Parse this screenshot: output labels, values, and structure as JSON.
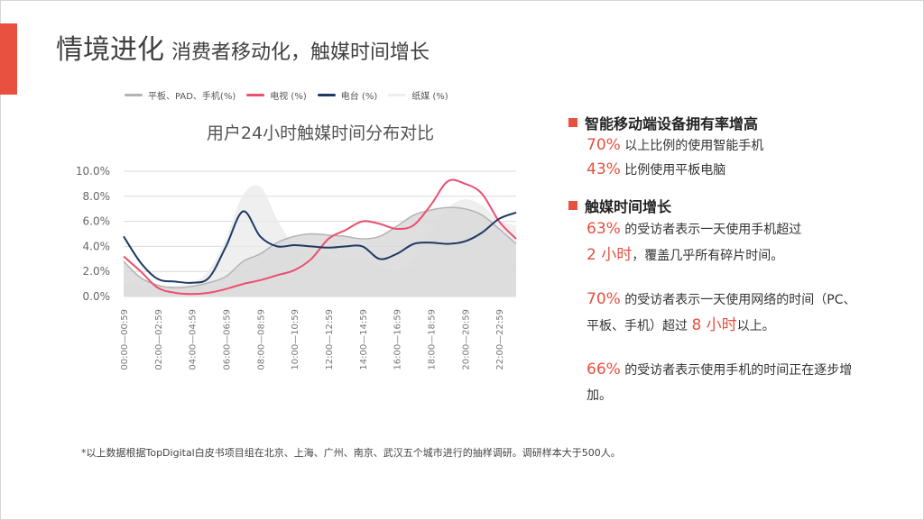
{
  "slide": {
    "title_main": "情境进化",
    "title_sub": "消费者移动化，触媒时间增长",
    "footnote": "*以上数据根据TopDigital白皮书项目组在北京、上海、广州、南京、武汉五个城市进行的抽样调研。调研样本大于500人。",
    "accent_color": "#e8503f"
  },
  "right_panel": {
    "section1": {
      "heading": "智能移动端设备拥有率增高",
      "line1_value": "70%",
      "line1_text": "以上比例的使用智能手机",
      "line2_value": "43%",
      "line2_text": "比例使用平板电脑"
    },
    "section2": {
      "heading": "触媒时间增长",
      "p1_value": "63%",
      "p1_text_a": "的受访者表示一天使用手机超过",
      "p1_value2": "2 小时",
      "p1_text_b": "，覆盖几乎所有碎片时间。",
      "p2_value": "70%",
      "p2_text_a": "的受访者表示一天使用网络的时间（PC、平板、手机）超过",
      "p2_value2": "8 小时",
      "p2_text_b": "以上。",
      "p3_value": "66%",
      "p3_text": "的受访者表示使用手机的时间正在逐步增加。"
    }
  },
  "chart_data": {
    "type": "line",
    "title": "用户24小时触媒时间分布对比",
    "x": [
      "00:00—00:59",
      "01:00—01:59",
      "02:00—02:59",
      "03:00—03:59",
      "04:00—04:59",
      "05:00—05:59",
      "06:00—06:59",
      "07:00—07:59",
      "08:00—08:59",
      "09:00—09:59",
      "10:00—10:59",
      "11:00—11:59",
      "12:00—12:59",
      "13:00—13:59",
      "14:00—14:59",
      "15:00—15:59",
      "16:00—16:59",
      "17:00—17:59",
      "18:00—18:59",
      "19:00—19:59",
      "20:00—20:59",
      "21:00—21:59",
      "22:00—22:59",
      "23:00—23:59"
    ],
    "x_tick_labels": [
      "00:00—00:59",
      "02:00—02:59",
      "04:00—04:59",
      "06:00—06:59",
      "08:00—08:59",
      "10:00—10:59",
      "12:00—12:59",
      "14:00—14:59",
      "16:00—16:59",
      "18:00—18:59",
      "20:00—20:59",
      "22:00—22:59"
    ],
    "y_ticks": [
      "0.0%",
      "2.0%",
      "4.0%",
      "6.0%",
      "8.0%",
      "10.0%"
    ],
    "ylim": [
      0,
      10
    ],
    "grid": true,
    "legend_position": "top",
    "series": [
      {
        "name": "平板、PAD、手机(%)",
        "color": "#b3b3b3",
        "style": "area",
        "fill": "#d9d9d9",
        "values": [
          2.8,
          1.5,
          0.9,
          0.7,
          0.8,
          1.1,
          1.6,
          2.8,
          3.4,
          4.3,
          4.8,
          5.0,
          4.9,
          4.8,
          4.6,
          4.8,
          5.6,
          6.5,
          6.9,
          7.1,
          7.0,
          6.5,
          5.4,
          4.2
        ]
      },
      {
        "name": "电视 (%)",
        "color": "#ec4f6f",
        "style": "line",
        "values": [
          3.2,
          2.0,
          0.7,
          0.3,
          0.2,
          0.3,
          0.6,
          1.0,
          1.3,
          1.7,
          2.1,
          3.0,
          4.6,
          5.3,
          6.0,
          5.8,
          5.4,
          5.7,
          7.3,
          9.2,
          9.0,
          8.2,
          6.0,
          4.6
        ]
      },
      {
        "name": "电台 (%)",
        "color": "#1f3864",
        "style": "line",
        "values": [
          4.8,
          2.7,
          1.4,
          1.2,
          1.1,
          1.5,
          4.0,
          6.8,
          4.8,
          4.0,
          4.1,
          4.0,
          3.9,
          4.0,
          4.0,
          3.0,
          3.4,
          4.2,
          4.3,
          4.2,
          4.4,
          5.1,
          6.2,
          6.7
        ]
      },
      {
        "name": "纸媒 (%)",
        "color": "#eeeeee",
        "style": "area",
        "fill": "#e9e9e9",
        "values": [
          1.0,
          0.8,
          0.7,
          0.8,
          1.0,
          2.0,
          4.5,
          8.0,
          8.7,
          6.0,
          4.0,
          3.5,
          3.0,
          3.0,
          2.9,
          2.4,
          2.0,
          2.8,
          5.0,
          7.0,
          7.7,
          7.2,
          6.0,
          5.6
        ]
      }
    ]
  }
}
